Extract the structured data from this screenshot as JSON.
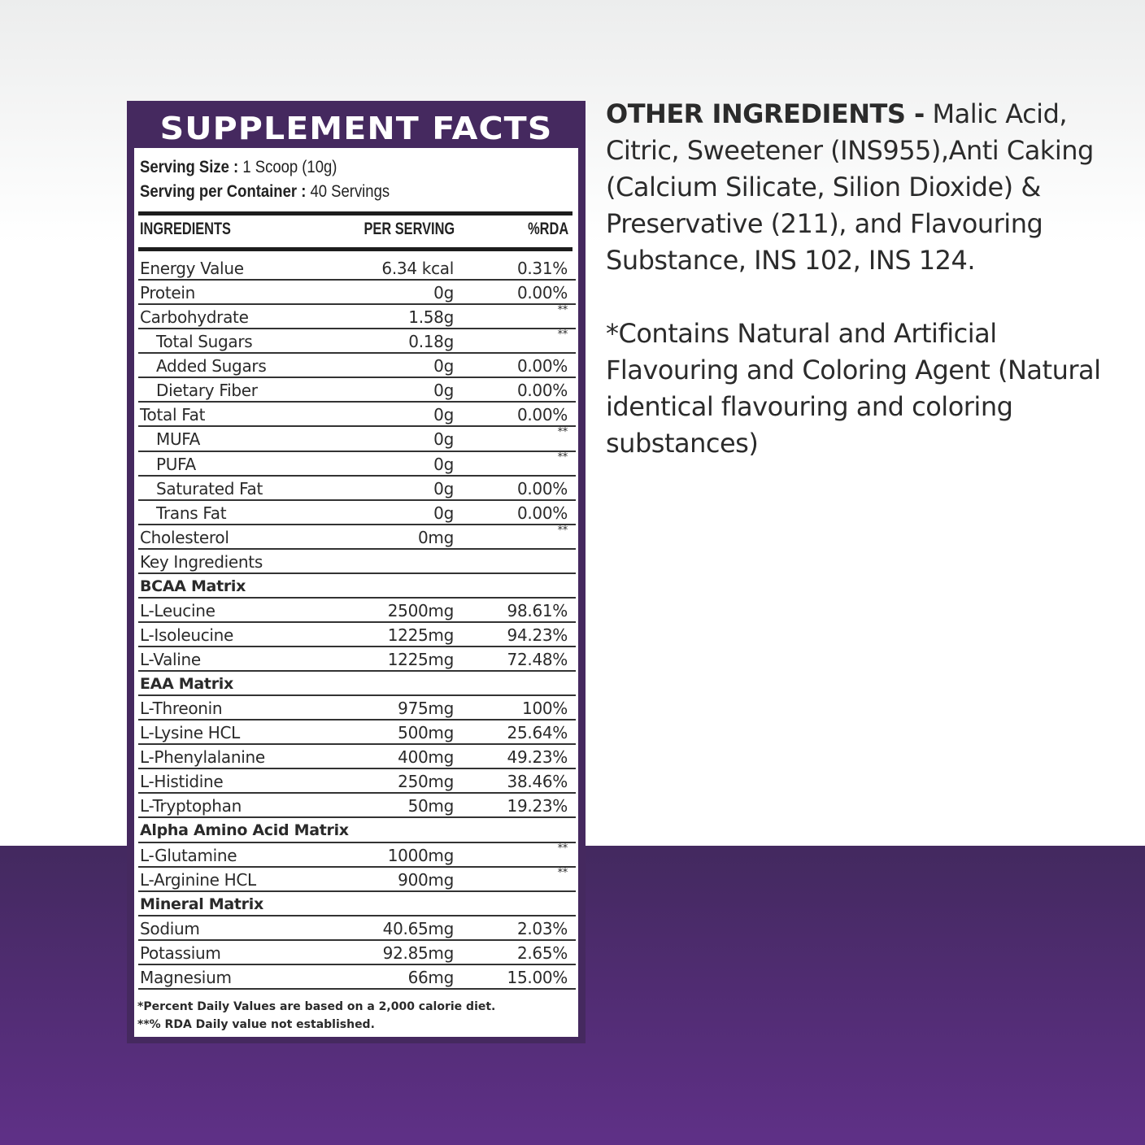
{
  "panel": {
    "title": "SUPPLEMENT FACTS",
    "serving_size_label": "Serving Size :",
    "serving_size_value": "1 Scoop (10g)",
    "servings_label": "Serving per Container :",
    "servings_value": "40 Servings",
    "headers": {
      "ingredient": "INGREDIENTS",
      "per_serving": "PER SERVING",
      "rda": "%RDA"
    },
    "rows": [
      {
        "name": "Energy Value",
        "value": "6.34 kcal",
        "rda": "0.31%",
        "type": "normal"
      },
      {
        "name": "Protein",
        "value": "0g",
        "rda": "0.00%",
        "type": "normal"
      },
      {
        "name": "Carbohydrate",
        "value": "1.58g",
        "rda": "**",
        "type": "normal"
      },
      {
        "name": "Total Sugars",
        "value": "0.18g",
        "rda": "**",
        "type": "ind"
      },
      {
        "name": "Added Sugars",
        "value": "0g",
        "rda": "0.00%",
        "type": "ind"
      },
      {
        "name": "Dietary Fiber",
        "value": "0g",
        "rda": "0.00%",
        "type": "ind"
      },
      {
        "name": "Total Fat",
        "value": "0g",
        "rda": "0.00%",
        "type": "normal"
      },
      {
        "name": "MUFA",
        "value": "0g",
        "rda": "**",
        "type": "ind"
      },
      {
        "name": "PUFA",
        "value": "0g",
        "rda": "**",
        "type": "ind"
      },
      {
        "name": "Saturated Fat",
        "value": "0g",
        "rda": "0.00%",
        "type": "ind"
      },
      {
        "name": "Trans Fat",
        "value": "0g",
        "rda": "0.00%",
        "type": "ind"
      },
      {
        "name": "Cholesterol",
        "value": "0mg",
        "rda": "**",
        "type": "normal"
      },
      {
        "name": "Key Ingredients",
        "value": "",
        "rda": "",
        "type": "normal"
      },
      {
        "name": "BCAA Matrix",
        "value": "",
        "rda": "",
        "type": "sec"
      },
      {
        "name": "L-Leucine",
        "value": "2500mg",
        "rda": "98.61%",
        "type": "normal"
      },
      {
        "name": "L-Isoleucine",
        "value": "1225mg",
        "rda": "94.23%",
        "type": "normal"
      },
      {
        "name": "L-Valine",
        "value": "1225mg",
        "rda": "72.48%",
        "type": "normal"
      },
      {
        "name": "EAA Matrix",
        "value": "",
        "rda": "",
        "type": "sec"
      },
      {
        "name": "L-Threonin",
        "value": "975mg",
        "rda": "100%",
        "type": "normal"
      },
      {
        "name": "L-Lysine HCL",
        "value": "500mg",
        "rda": "25.64%",
        "type": "normal"
      },
      {
        "name": "L-Phenylalanine",
        "value": "400mg",
        "rda": "49.23%",
        "type": "normal"
      },
      {
        "name": "L-Histidine",
        "value": "250mg",
        "rda": "38.46%",
        "type": "normal"
      },
      {
        "name": "L-Tryptophan",
        "value": "50mg",
        "rda": "19.23%",
        "type": "normal"
      },
      {
        "name": "Alpha Amino Acid Matrix",
        "value": "",
        "rda": "",
        "type": "sec"
      },
      {
        "name": "L-Glutamine",
        "value": "1000mg",
        "rda": "**",
        "type": "normal"
      },
      {
        "name": "L-Arginine HCL",
        "value": "900mg",
        "rda": "**",
        "type": "normal"
      },
      {
        "name": "Mineral Matrix",
        "value": "",
        "rda": "",
        "type": "sec"
      },
      {
        "name": "Sodium",
        "value": "40.65mg",
        "rda": "2.03%",
        "type": "normal"
      },
      {
        "name": "Potassium",
        "value": "92.85mg",
        "rda": "2.65%",
        "type": "normal"
      },
      {
        "name": "Magnesium",
        "value": "66mg",
        "rda": "15.00%",
        "type": "normal"
      }
    ],
    "footnote1": "*Percent Daily Values are based on a 2,000 calorie diet.",
    "footnote2": "**% RDA Daily value not established."
  },
  "side": {
    "other_label": "OTHER INGREDIENTS -",
    "other_text": " Malic Acid, Citric, Sweetener (INS955),Anti Caking (Calcium Silicate, Silion Dioxide) & Preservative (211), and Flavouring Substance, INS 102, INS 124.",
    "contains_text": "*Contains Natural and Artificial Flavouring and Coloring Agent (Natural identical flavouring and coloring substances)"
  },
  "colors": {
    "purple_dark": "#45295f",
    "purple_light": "#5f3087"
  }
}
